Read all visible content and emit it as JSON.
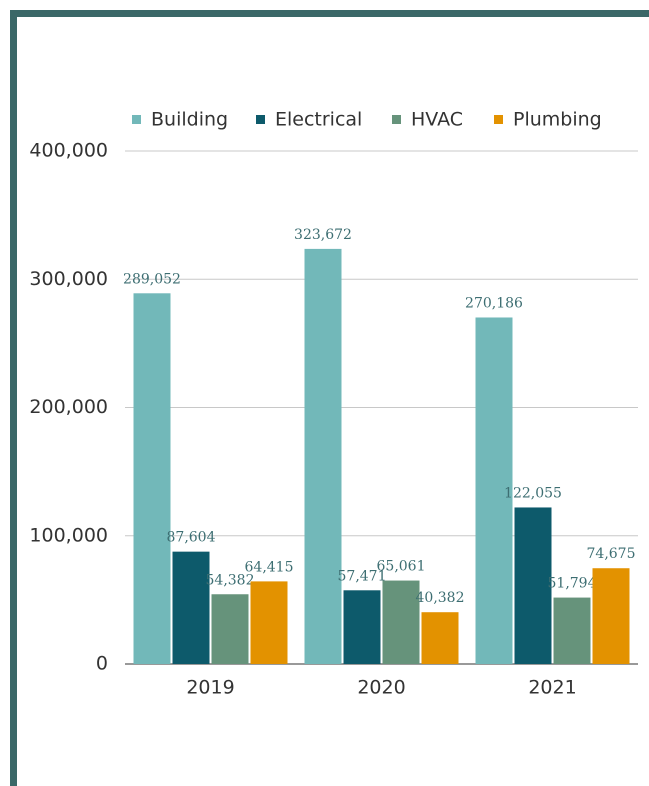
{
  "chart_data": {
    "type": "bar",
    "categories": [
      "2019",
      "2020",
      "2021"
    ],
    "series": [
      {
        "name": "Building",
        "color": "#72b8b9",
        "values": [
          289052,
          323672,
          270186
        ],
        "value_labels": [
          "289,052",
          "323,672",
          "270,186"
        ]
      },
      {
        "name": "Electrical",
        "color": "#0d5a6b",
        "values": [
          87604,
          57471,
          122055
        ],
        "value_labels": [
          "87,604",
          "57,471",
          "122,055"
        ]
      },
      {
        "name": "HVAC",
        "color": "#66937b",
        "values": [
          54382,
          65061,
          51794
        ],
        "value_labels": [
          "54,382",
          "65,061",
          "51,794"
        ]
      },
      {
        "name": "Plumbing",
        "color": "#e39200",
        "values": [
          64415,
          40382,
          74675
        ],
        "value_labels": [
          "64,415",
          "40,382",
          "74,675"
        ]
      }
    ],
    "ylim": [
      0,
      400000
    ],
    "yticks": [
      0,
      {
        "value": 100000,
        "label": "100,000"
      },
      {
        "value": 200000,
        "label": "200,000"
      },
      {
        "value": 300000,
        "label": "300,000"
      },
      {
        "value": 400000,
        "label": "400,000"
      }
    ],
    "grid": true,
    "legend": "top"
  }
}
